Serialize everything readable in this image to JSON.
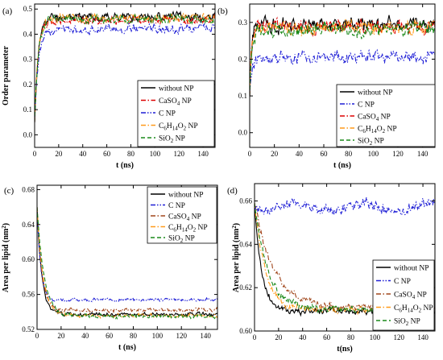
{
  "figure": {
    "background": "#ffffff"
  },
  "colors": {
    "without_np": "#000000",
    "caso4": "#dd0000",
    "c_np": "#1f1fd6",
    "c6h14o2": "#ff9a1a",
    "sio2": "#1a8a1a",
    "caso4_area": "#a0451a"
  },
  "chart_data": [
    {
      "panel_label": "(a)",
      "type": "line",
      "xlabel": "t (ns)",
      "ylabel": "Order parameter",
      "xlim": [
        0,
        150
      ],
      "ylim": [
        -0.05,
        0.52
      ],
      "xticks": [
        0,
        20,
        40,
        60,
        80,
        100,
        120,
        140
      ],
      "yticks": [
        0.0,
        0.1,
        0.2,
        0.3,
        0.4,
        0.5
      ],
      "ytick_labels": [
        "0.0",
        "0.1",
        "0.2",
        "0.3",
        "0.4",
        "0.5"
      ],
      "grid": false,
      "legend_position": "lower-right",
      "series": [
        {
          "name": "without NP",
          "color_key": "without_np",
          "dash": "solid",
          "start": 0.05,
          "plateau": 0.47,
          "tau": 3,
          "noise": 0.012,
          "seed": 11
        },
        {
          "name": "CaSO4 NP",
          "color_key": "caso4",
          "dash": "dashdot",
          "start": 0.05,
          "plateau": 0.455,
          "tau": 3,
          "noise": 0.012,
          "seed": 12
        },
        {
          "name": "C NP",
          "color_key": "c_np",
          "dash": "dashdotdot",
          "start": 0.05,
          "plateau": 0.42,
          "tau": 3,
          "noise": 0.013,
          "seed": 13
        },
        {
          "name": "C6H14O2 NP",
          "color_key": "c6h14o2",
          "dash": "dashdot",
          "start": 0.05,
          "plateau": 0.465,
          "tau": 3,
          "noise": 0.012,
          "seed": 14
        },
        {
          "name": "SiO2 NP",
          "color_key": "sio2",
          "dash": "dashed",
          "start": 0.05,
          "plateau": 0.46,
          "tau": 3,
          "noise": 0.012,
          "seed": 15
        }
      ]
    },
    {
      "panel_label": "(b)",
      "type": "line",
      "xlabel": "t (ns)",
      "ylabel": "",
      "xlim": [
        0,
        150
      ],
      "ylim": [
        -0.04,
        0.35
      ],
      "xticks": [
        0,
        20,
        40,
        60,
        80,
        100,
        120,
        140
      ],
      "yticks": [
        0.0,
        0.1,
        0.2,
        0.3
      ],
      "ytick_labels": [
        "0.0",
        "0.1",
        "0.2",
        "0.3"
      ],
      "grid": false,
      "legend_position": "lower-right",
      "series": [
        {
          "name": "without NP",
          "color_key": "without_np",
          "dash": "solid",
          "start": 0.1,
          "plateau": 0.295,
          "tau": 1.5,
          "noise": 0.014,
          "seed": 21
        },
        {
          "name": "C NP",
          "color_key": "c_np",
          "dash": "dashdotdot",
          "start": 0.1,
          "plateau": 0.205,
          "tau": 1.5,
          "noise": 0.013,
          "seed": 22
        },
        {
          "name": "CaSO4 NP",
          "color_key": "caso4",
          "dash": "dashdot",
          "start": 0.1,
          "plateau": 0.29,
          "tau": 1.5,
          "noise": 0.014,
          "seed": 23
        },
        {
          "name": "C6H14O2 NP",
          "color_key": "c6h14o2",
          "dash": "dashdot",
          "start": 0.1,
          "plateau": 0.285,
          "tau": 1.5,
          "noise": 0.014,
          "seed": 24
        },
        {
          "name": "SiO2 NP",
          "color_key": "sio2",
          "dash": "dashed",
          "start": 0.1,
          "plateau": 0.28,
          "tau": 1.5,
          "noise": 0.014,
          "seed": 25
        }
      ]
    },
    {
      "panel_label": "(c)",
      "type": "line",
      "xlabel": "t (ns)",
      "ylabel": "Area per lipid (nm2)",
      "xlim": [
        0,
        150
      ],
      "ylim": [
        0.52,
        0.685
      ],
      "xticks": [
        0,
        20,
        40,
        60,
        80,
        100,
        120,
        140
      ],
      "yticks": [
        0.52,
        0.56,
        0.6,
        0.64,
        0.68
      ],
      "ytick_labels": [
        "0.52",
        "0.56",
        "0.60",
        "0.64",
        "0.68"
      ],
      "grid": false,
      "legend_position": "top-right",
      "series": [
        {
          "name": "without NP",
          "color_key": "without_np",
          "dash": "solid",
          "start": 0.66,
          "plateau": 0.537,
          "tau": 4,
          "noise": 0.0016,
          "seed": 31
        },
        {
          "name": "C NP",
          "color_key": "c_np",
          "dash": "dashdotdot",
          "start": 0.66,
          "plateau": 0.554,
          "tau": 3,
          "noise": 0.0014,
          "seed": 32
        },
        {
          "name": "CaSO4 NP",
          "color_key": "caso4_area",
          "dash": "dashdot",
          "start": 0.66,
          "plateau": 0.542,
          "tau": 4,
          "noise": 0.0016,
          "seed": 33
        },
        {
          "name": "C6H14O2 NP",
          "color_key": "c6h14o2",
          "dash": "dashdot",
          "start": 0.66,
          "plateau": 0.536,
          "tau": 5,
          "noise": 0.0016,
          "seed": 34
        },
        {
          "name": "SiO2 NP",
          "color_key": "sio2",
          "dash": "dashed",
          "start": 0.66,
          "plateau": 0.535,
          "tau": 6,
          "noise": 0.0016,
          "seed": 35
        }
      ]
    },
    {
      "panel_label": "(d)",
      "type": "line",
      "xlabel": "t(ns)",
      "ylabel": "Area per lipid (nm2)",
      "xlim": [
        0,
        150
      ],
      "ylim": [
        0.6,
        0.668
      ],
      "xticks": [
        0,
        20,
        40,
        60,
        80,
        100,
        120,
        140
      ],
      "yticks": [
        0.6,
        0.62,
        0.64,
        0.66
      ],
      "ytick_labels": [
        "0.60",
        "0.62",
        "0.64",
        "0.66"
      ],
      "grid": false,
      "legend_position": "lower-right",
      "series": [
        {
          "name": "without NP",
          "color_key": "without_np",
          "dash": "solid",
          "start": 0.659,
          "plateau": 0.609,
          "tau": 6,
          "noise": 0.0012,
          "seed": 41
        },
        {
          "name": "C NP",
          "color_key": "c_np",
          "dash": "dashdotdot",
          "start": 0.658,
          "plateau": 0.657,
          "tau": 2,
          "noise": 0.0018,
          "seed": 42
        },
        {
          "name": "CaSO4 NP",
          "color_key": "caso4_area",
          "dash": "dashdot",
          "start": 0.659,
          "plateau": 0.611,
          "tau": 16,
          "noise": 0.0012,
          "seed": 43
        },
        {
          "name": "C6H14O2 NP",
          "color_key": "c6h14o2",
          "dash": "dashdot",
          "start": 0.659,
          "plateau": 0.61,
          "tau": 9,
          "noise": 0.0012,
          "seed": 44
        },
        {
          "name": "SiO2 NP",
          "color_key": "sio2",
          "dash": "dashed",
          "start": 0.659,
          "plateau": 0.61,
          "tau": 11,
          "noise": 0.0012,
          "seed": 45
        }
      ]
    }
  ]
}
